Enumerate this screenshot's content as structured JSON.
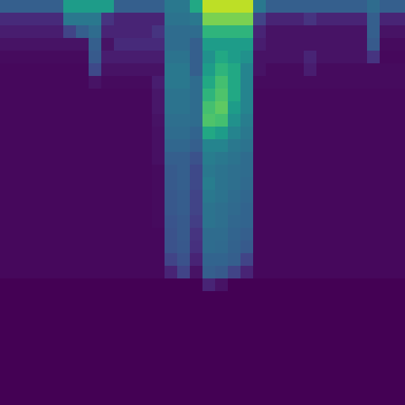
{
  "chart_data": {
    "type": "heatmap",
    "tick_labels": false,
    "zlim": [
      0,
      100
    ],
    "cells": [
      [
        30,
        30,
        30,
        30,
        30,
        55,
        55,
        55,
        55,
        30,
        30,
        30,
        30,
        40,
        40,
        60,
        90,
        90,
        90,
        90,
        40,
        30,
        30,
        30,
        30,
        30,
        30,
        30,
        30,
        35,
        30,
        30
      ],
      [
        12,
        12,
        12,
        12,
        12,
        40,
        40,
        40,
        15,
        10,
        10,
        10,
        10,
        38,
        38,
        40,
        80,
        80,
        80,
        80,
        20,
        10,
        10,
        10,
        15,
        10,
        10,
        10,
        10,
        30,
        10,
        10
      ],
      [
        8,
        8,
        8,
        8,
        8,
        20,
        30,
        35,
        10,
        10,
        10,
        10,
        15,
        35,
        35,
        35,
        65,
        65,
        65,
        65,
        10,
        5,
        5,
        5,
        5,
        5,
        5,
        5,
        5,
        30,
        5,
        5
      ],
      [
        5,
        5,
        5,
        5,
        5,
        5,
        5,
        30,
        5,
        12,
        12,
        12,
        12,
        35,
        35,
        30,
        55,
        55,
        55,
        55,
        8,
        5,
        5,
        5,
        5,
        5,
        5,
        5,
        5,
        28,
        3,
        3
      ],
      [
        3,
        3,
        3,
        3,
        3,
        3,
        3,
        28,
        8,
        8,
        8,
        8,
        8,
        38,
        38,
        30,
        50,
        60,
        55,
        50,
        5,
        5,
        5,
        5,
        10,
        5,
        5,
        5,
        5,
        15,
        2,
        2
      ],
      [
        2,
        2,
        2,
        2,
        2,
        2,
        2,
        22,
        5,
        5,
        5,
        5,
        5,
        40,
        40,
        30,
        55,
        65,
        60,
        45,
        5,
        3,
        3,
        3,
        8,
        3,
        3,
        3,
        3,
        3,
        3,
        3
      ],
      [
        2,
        2,
        2,
        2,
        2,
        2,
        2,
        5,
        3,
        3,
        3,
        3,
        8,
        40,
        40,
        35,
        60,
        70,
        60,
        45,
        3,
        3,
        3,
        3,
        3,
        3,
        3,
        3,
        3,
        3,
        3,
        3
      ],
      [
        2,
        2,
        2,
        2,
        2,
        2,
        2,
        2,
        2,
        2,
        2,
        2,
        6,
        38,
        38,
        35,
        65,
        72,
        60,
        45,
        2,
        2,
        2,
        2,
        2,
        2,
        2,
        2,
        2,
        2,
        2,
        2
      ],
      [
        2,
        2,
        2,
        2,
        2,
        2,
        2,
        2,
        2,
        2,
        2,
        2,
        6,
        38,
        38,
        35,
        70,
        75,
        55,
        45,
        2,
        2,
        2,
        2,
        2,
        2,
        2,
        2,
        2,
        2,
        2,
        2
      ],
      [
        2,
        2,
        2,
        2,
        2,
        2,
        2,
        2,
        2,
        2,
        2,
        2,
        5,
        36,
        36,
        35,
        72,
        70,
        50,
        42,
        2,
        2,
        2,
        2,
        2,
        2,
        2,
        2,
        2,
        2,
        2,
        2
      ],
      [
        2,
        2,
        2,
        2,
        2,
        2,
        2,
        2,
        2,
        2,
        2,
        2,
        4,
        35,
        35,
        32,
        60,
        55,
        45,
        40,
        2,
        2,
        2,
        2,
        2,
        2,
        2,
        2,
        2,
        2,
        2,
        2
      ],
      [
        2,
        2,
        2,
        2,
        2,
        2,
        2,
        2,
        2,
        2,
        2,
        2,
        4,
        33,
        33,
        30,
        45,
        45,
        40,
        38,
        2,
        2,
        2,
        2,
        2,
        2,
        2,
        2,
        2,
        2,
        2,
        2
      ],
      [
        2,
        2,
        2,
        2,
        2,
        2,
        2,
        2,
        2,
        2,
        2,
        2,
        4,
        30,
        30,
        25,
        42,
        40,
        38,
        35,
        2,
        2,
        2,
        2,
        2,
        2,
        2,
        2,
        2,
        2,
        2,
        2
      ],
      [
        2,
        2,
        2,
        2,
        2,
        2,
        2,
        2,
        2,
        2,
        2,
        2,
        3,
        28,
        30,
        22,
        40,
        38,
        36,
        35,
        2,
        2,
        2,
        2,
        2,
        2,
        2,
        2,
        2,
        2,
        2,
        2
      ],
      [
        2,
        2,
        2,
        2,
        2,
        2,
        2,
        2,
        2,
        2,
        2,
        2,
        3,
        28,
        30,
        22,
        42,
        38,
        36,
        34,
        2,
        2,
        2,
        2,
        2,
        2,
        2,
        2,
        2,
        2,
        2,
        2
      ],
      [
        2,
        2,
        2,
        2,
        2,
        2,
        2,
        2,
        2,
        2,
        2,
        2,
        3,
        27,
        29,
        20,
        40,
        38,
        35,
        33,
        2,
        2,
        2,
        2,
        2,
        2,
        2,
        2,
        2,
        2,
        2,
        2
      ],
      [
        2,
        2,
        2,
        2,
        2,
        2,
        2,
        2,
        2,
        2,
        2,
        2,
        3,
        27,
        29,
        20,
        38,
        36,
        34,
        32,
        2,
        2,
        2,
        2,
        2,
        2,
        2,
        2,
        2,
        2,
        2,
        2
      ],
      [
        2,
        2,
        2,
        2,
        2,
        2,
        2,
        2,
        2,
        2,
        2,
        2,
        3,
        26,
        28,
        18,
        38,
        36,
        33,
        32,
        2,
        2,
        2,
        2,
        2,
        2,
        2,
        2,
        2,
        2,
        2,
        2
      ],
      [
        2,
        2,
        2,
        2,
        2,
        2,
        2,
        2,
        2,
        2,
        2,
        2,
        2,
        25,
        28,
        15,
        35,
        35,
        32,
        30,
        2,
        2,
        2,
        2,
        2,
        2,
        2,
        2,
        2,
        2,
        2,
        2
      ],
      [
        2,
        2,
        2,
        2,
        2,
        2,
        2,
        2,
        2,
        2,
        2,
        2,
        2,
        25,
        27,
        14,
        35,
        34,
        31,
        28,
        2,
        2,
        2,
        2,
        2,
        2,
        2,
        2,
        2,
        2,
        2,
        2
      ],
      [
        2,
        2,
        2,
        2,
        2,
        2,
        2,
        2,
        2,
        2,
        2,
        2,
        2,
        20,
        25,
        10,
        32,
        32,
        30,
        20,
        2,
        2,
        2,
        2,
        2,
        2,
        2,
        2,
        2,
        2,
        2,
        2
      ],
      [
        2,
        2,
        2,
        2,
        2,
        2,
        2,
        2,
        2,
        2,
        2,
        2,
        2,
        10,
        20,
        5,
        30,
        28,
        20,
        10,
        2,
        2,
        2,
        2,
        2,
        2,
        2,
        2,
        2,
        2,
        2,
        2
      ],
      [
        0,
        0,
        0,
        0,
        0,
        0,
        0,
        0,
        0,
        0,
        0,
        0,
        0,
        0,
        0,
        0,
        10,
        5,
        0,
        0,
        0,
        0,
        0,
        0,
        0,
        0,
        0,
        0,
        0,
        0,
        0,
        0
      ],
      [
        0,
        0,
        0,
        0,
        0,
        0,
        0,
        0,
        0,
        0,
        0,
        0,
        0,
        0,
        0,
        0,
        0,
        0,
        0,
        0,
        0,
        0,
        0,
        0,
        0,
        0,
        0,
        0,
        0,
        0,
        0,
        0
      ],
      [
        0,
        0,
        0,
        0,
        0,
        0,
        0,
        0,
        0,
        0,
        0,
        0,
        0,
        0,
        0,
        0,
        0,
        0,
        0,
        0,
        0,
        0,
        0,
        0,
        0,
        0,
        0,
        0,
        0,
        0,
        0,
        0
      ],
      [
        0,
        0,
        0,
        0,
        0,
        0,
        0,
        0,
        0,
        0,
        0,
        0,
        0,
        0,
        0,
        0,
        0,
        0,
        0,
        0,
        0,
        0,
        0,
        0,
        0,
        0,
        0,
        0,
        0,
        0,
        0,
        0
      ],
      [
        0,
        0,
        0,
        0,
        0,
        0,
        0,
        0,
        0,
        0,
        0,
        0,
        0,
        0,
        0,
        0,
        0,
        0,
        0,
        0,
        0,
        0,
        0,
        0,
        0,
        0,
        0,
        0,
        0,
        0,
        0,
        0
      ],
      [
        0,
        0,
        0,
        0,
        0,
        0,
        0,
        0,
        0,
        0,
        0,
        0,
        0,
        0,
        0,
        0,
        0,
        0,
        0,
        0,
        0,
        0,
        0,
        0,
        0,
        0,
        0,
        0,
        0,
        0,
        0,
        0
      ],
      [
        0,
        0,
        0,
        0,
        0,
        0,
        0,
        0,
        0,
        0,
        0,
        0,
        0,
        0,
        0,
        0,
        0,
        0,
        0,
        0,
        0,
        0,
        0,
        0,
        0,
        0,
        0,
        0,
        0,
        0,
        0,
        0
      ],
      [
        0,
        0,
        0,
        0,
        0,
        0,
        0,
        0,
        0,
        0,
        0,
        0,
        0,
        0,
        0,
        0,
        0,
        0,
        0,
        0,
        0,
        0,
        0,
        0,
        0,
        0,
        0,
        0,
        0,
        0,
        0,
        0
      ],
      [
        0,
        0,
        0,
        0,
        0,
        0,
        0,
        0,
        0,
        0,
        0,
        0,
        0,
        0,
        0,
        0,
        0,
        0,
        0,
        0,
        0,
        0,
        0,
        0,
        0,
        0,
        0,
        0,
        0,
        0,
        0,
        0
      ],
      [
        0,
        0,
        0,
        0,
        0,
        0,
        0,
        0,
        0,
        0,
        0,
        0,
        0,
        0,
        0,
        0,
        0,
        0,
        0,
        0,
        0,
        0,
        0,
        0,
        0,
        0,
        0,
        0,
        0,
        0,
        0,
        0
      ]
    ]
  }
}
